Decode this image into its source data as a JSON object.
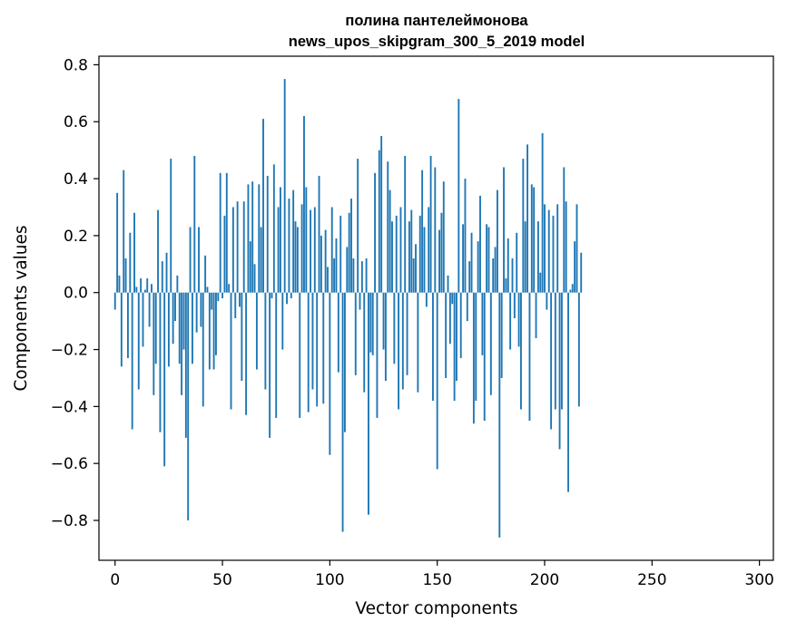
{
  "chart_data": {
    "type": "bar",
    "title_line1": "полина пантелеймонова",
    "title_line2": "news_upos_skipgram_300_5_2019 model",
    "xlabel": "Vector components",
    "ylabel": "Components values",
    "xlim": [
      -7.5,
      306.5
    ],
    "ylim": [
      -0.94,
      0.83
    ],
    "xticks": [
      0,
      50,
      100,
      150,
      200,
      250,
      300
    ],
    "xtick_labels": [
      "0",
      "50",
      "100",
      "150",
      "200",
      "250",
      "300"
    ],
    "yticks": [
      -0.8,
      -0.6,
      -0.4,
      -0.2,
      0.0,
      0.2,
      0.4,
      0.6,
      0.8
    ],
    "ytick_labels": [
      "−0.8",
      "−0.6",
      "−0.4",
      "−0.2",
      "0.0",
      "0.2",
      "0.4",
      "0.6",
      "0.8"
    ],
    "bar_color": "#1f77b4",
    "x_start": 0,
    "values": [
      -0.06,
      0.35,
      0.06,
      -0.26,
      0.43,
      0.12,
      -0.23,
      0.21,
      -0.48,
      0.28,
      0.02,
      -0.34,
      0.05,
      -0.19,
      0.01,
      0.05,
      -0.12,
      0.03,
      -0.36,
      -0.25,
      0.29,
      -0.49,
      0.11,
      -0.61,
      0.14,
      -0.26,
      0.47,
      -0.18,
      -0.1,
      0.06,
      -0.25,
      -0.36,
      -0.2,
      -0.51,
      -0.8,
      0.23,
      -0.25,
      0.48,
      -0.14,
      0.23,
      -0.12,
      -0.4,
      0.13,
      0.02,
      -0.27,
      -0.06,
      -0.27,
      -0.22,
      -0.03,
      0.42,
      -0.02,
      0.27,
      0.42,
      0.03,
      -0.41,
      0.3,
      -0.09,
      0.32,
      -0.05,
      -0.31,
      0.32,
      -0.43,
      0.38,
      0.18,
      0.39,
      0.1,
      -0.27,
      0.38,
      0.23,
      0.61,
      -0.34,
      0.41,
      -0.51,
      -0.02,
      0.45,
      -0.44,
      0.3,
      0.37,
      -0.2,
      0.75,
      -0.04,
      0.33,
      -0.02,
      0.36,
      0.25,
      0.23,
      -0.44,
      0.31,
      0.62,
      0.37,
      -0.42,
      0.29,
      -0.34,
      0.3,
      -0.4,
      0.41,
      0.2,
      -0.39,
      0.22,
      0.09,
      -0.57,
      0.3,
      0.12,
      0.19,
      -0.28,
      0.27,
      -0.84,
      -0.49,
      0.16,
      0.28,
      0.33,
      0.12,
      -0.29,
      0.47,
      -0.06,
      0.11,
      -0.35,
      0.12,
      -0.78,
      -0.21,
      -0.22,
      0.42,
      -0.44,
      0.5,
      0.55,
      -0.2,
      -0.31,
      0.46,
      0.36,
      0.25,
      -0.25,
      0.27,
      -0.41,
      0.3,
      -0.34,
      0.48,
      -0.29,
      0.25,
      0.29,
      0.12,
      0.17,
      -0.35,
      0.27,
      0.43,
      0.23,
      -0.05,
      0.3,
      0.48,
      -0.38,
      0.44,
      -0.62,
      0.22,
      0.28,
      0.39,
      -0.3,
      0.06,
      -0.18,
      -0.04,
      -0.38,
      -0.31,
      0.68,
      -0.23,
      0.24,
      0.4,
      -0.1,
      0.11,
      0.21,
      -0.46,
      -0.38,
      0.18,
      0.34,
      -0.22,
      -0.45,
      0.24,
      0.23,
      -0.36,
      0.12,
      0.16,
      0.36,
      -0.86,
      -0.3,
      0.44,
      0.05,
      0.19,
      -0.2,
      0.12,
      -0.09,
      0.21,
      -0.19,
      -0.41,
      0.47,
      0.25,
      0.52,
      -0.45,
      0.38,
      0.37,
      -0.16,
      0.25,
      0.07,
      0.56,
      0.31,
      -0.06,
      0.29,
      -0.48,
      0.27,
      -0.41,
      0.31,
      -0.55,
      -0.41,
      0.44,
      0.32,
      -0.7,
      0.01,
      0.03,
      0.18,
      0.31,
      -0.4,
      0.14
    ]
  }
}
